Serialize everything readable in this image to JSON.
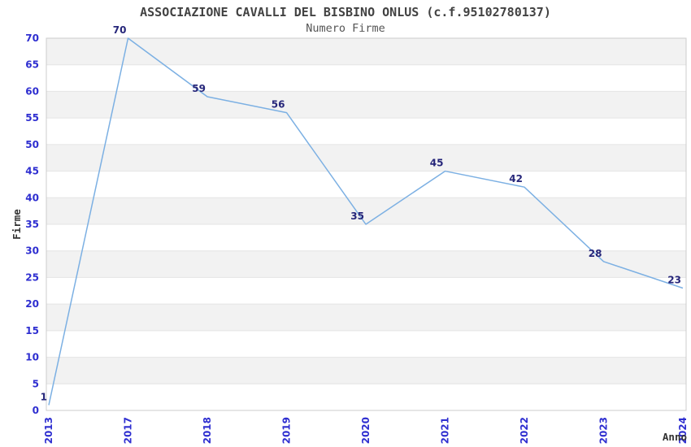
{
  "chart_data": {
    "type": "line",
    "title": "ASSOCIAZIONE CAVALLI DEL BISBINO ONLUS (c.f.95102780137)",
    "subtitle": "Numero Firme",
    "xlabel": "Anno",
    "ylabel": "Firme",
    "categories": [
      "2013",
      "2017",
      "2018",
      "2019",
      "2020",
      "2021",
      "2022",
      "2023",
      "2024"
    ],
    "values": [
      1,
      70,
      59,
      56,
      35,
      45,
      42,
      28,
      23
    ],
    "ylim": [
      0,
      70
    ],
    "ytick_step": 5,
    "yticks": [
      0,
      5,
      10,
      15,
      20,
      25,
      30,
      35,
      40,
      45,
      50,
      55,
      60,
      65,
      70
    ],
    "xtick_rotation": -90,
    "grid": "horizontal",
    "banded_background": true,
    "markers": "none",
    "legend_position": "none",
    "data_labels_visible": true,
    "colors": {
      "line": "#7cb0e3",
      "band": "#f2f2f2",
      "grid": "#e4e4e4",
      "border": "#cccccc",
      "tick_label": "#2e2ed0",
      "data_label": "#26267a",
      "title": "#424242",
      "subtitle": "#555555",
      "axis_label": "#333333",
      "background": "#ffffff"
    }
  }
}
